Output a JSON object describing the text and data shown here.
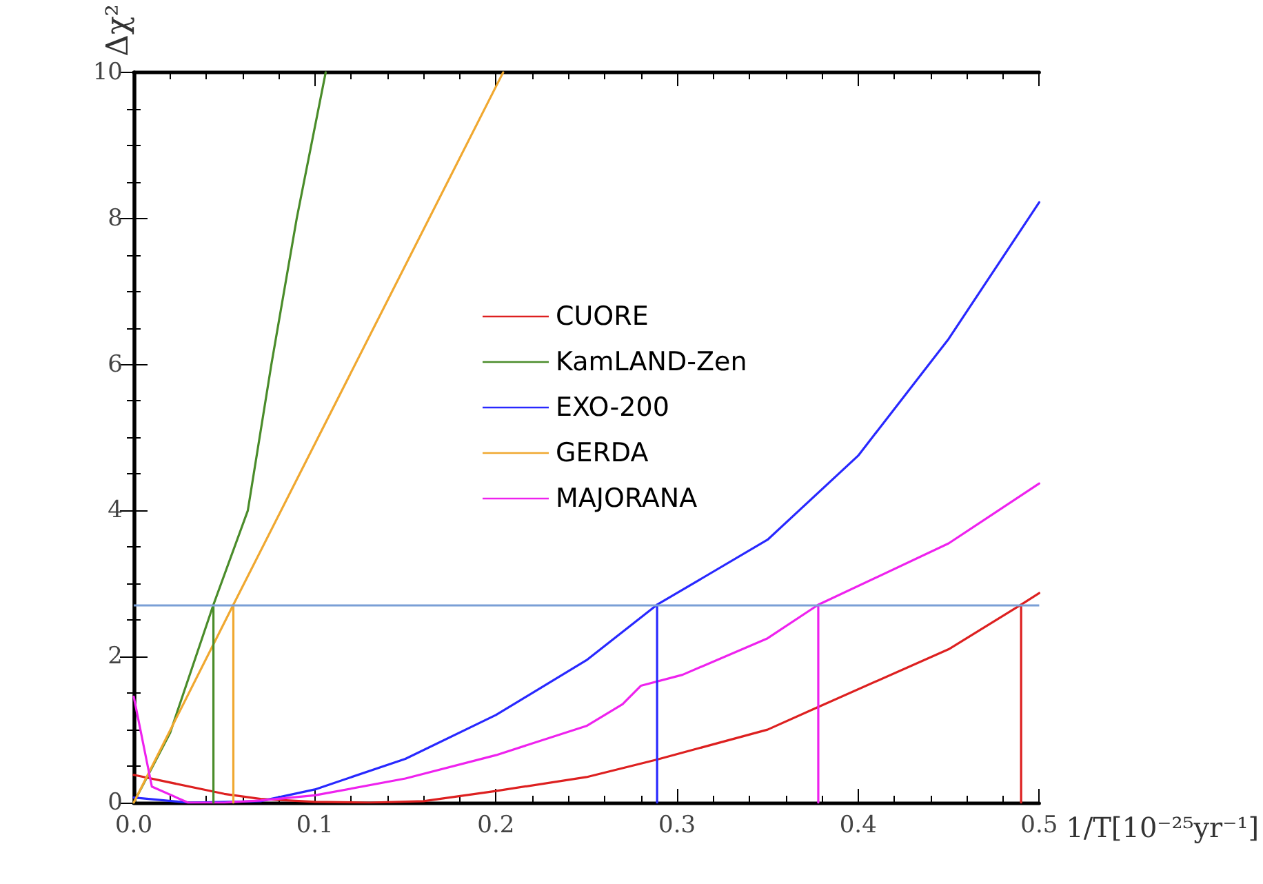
{
  "chart_data": {
    "type": "line",
    "xlabel": "1/T[10⁻²⁵yr⁻¹]",
    "ylabel": "Δχ²",
    "xlim": [
      0,
      0.5
    ],
    "xticks": [
      {
        "value": 0,
        "label": "0.0"
      },
      0.1,
      0.2,
      0.3,
      0.4,
      0.5
    ],
    "ylim": [
      0,
      10
    ],
    "yticks": [
      0,
      2,
      4,
      6,
      8,
      10
    ],
    "grid": false,
    "legend": "center",
    "marker": "none",
    "line_style": "solid",
    "ref_lines": [
      {
        "axis": "y",
        "value": 2.71,
        "color": "#7a9fd6"
      }
    ],
    "series": [
      {
        "name": "CUORE",
        "color": "#dd2020",
        "x": [
          0,
          0.05,
          0.07,
          0.1,
          0.13,
          0.16,
          0.2,
          0.25,
          0.289,
          0.35,
          0.378,
          0.45,
          0.49,
          0.5
        ],
        "values": [
          0.38,
          0.12,
          0.05,
          0.01,
          0,
          0.02,
          0.16,
          0.35,
          0.59,
          1.0,
          1.31,
          2.1,
          2.71,
          2.87
        ]
      },
      {
        "name": "KamLAND-Zen",
        "color": "#4a8c2a",
        "x": [
          0,
          0.02,
          0.044,
          0.063,
          0.076,
          0.09,
          0.106
        ],
        "values": [
          0,
          0.95,
          2.71,
          4.0,
          6.0,
          8.0,
          10
        ]
      },
      {
        "name": "EXO-200",
        "color": "#2828ff",
        "x": [
          0,
          0.03,
          0.07,
          0.1,
          0.15,
          0.2,
          0.25,
          0.289,
          0.35,
          0.4,
          0.45,
          0.5
        ],
        "values": [
          0.07,
          0,
          0.02,
          0.18,
          0.6,
          1.2,
          1.95,
          2.71,
          3.6,
          4.75,
          6.35,
          8.22
        ]
      },
      {
        "name": "GERDA",
        "color": "#f0a830",
        "x": [
          0,
          0.055,
          0.204
        ],
        "values": [
          0,
          2.71,
          10
        ]
      },
      {
        "name": "MAJORANA",
        "color": "#ee22ee",
        "x": [
          0,
          0.01,
          0.03,
          0.05,
          0.07,
          0.1,
          0.15,
          0.2,
          0.25,
          0.27,
          0.28,
          0.303,
          0.35,
          0.378,
          0.45,
          0.5
        ],
        "values": [
          1.45,
          0.22,
          0,
          0,
          0.03,
          0.1,
          0.33,
          0.65,
          1.05,
          1.35,
          1.6,
          1.75,
          2.25,
          2.71,
          3.55,
          4.37
        ]
      },
      {
        "color": "#dd2020",
        "x": [
          0.49,
          0.49
        ],
        "values": [
          0,
          2.71
        ]
      },
      {
        "color": "#4a8c2a",
        "x": [
          0.044,
          0.044
        ],
        "values": [
          0,
          2.71
        ]
      },
      {
        "color": "#2828ff",
        "x": [
          0.289,
          0.289
        ],
        "values": [
          0,
          2.71
        ]
      },
      {
        "color": "#f0a830",
        "x": [
          0.055,
          0.055
        ],
        "values": [
          0,
          2.71
        ]
      },
      {
        "color": "#ee22ee",
        "x": [
          0.378,
          0.378
        ],
        "values": [
          0,
          2.71
        ]
      }
    ]
  }
}
